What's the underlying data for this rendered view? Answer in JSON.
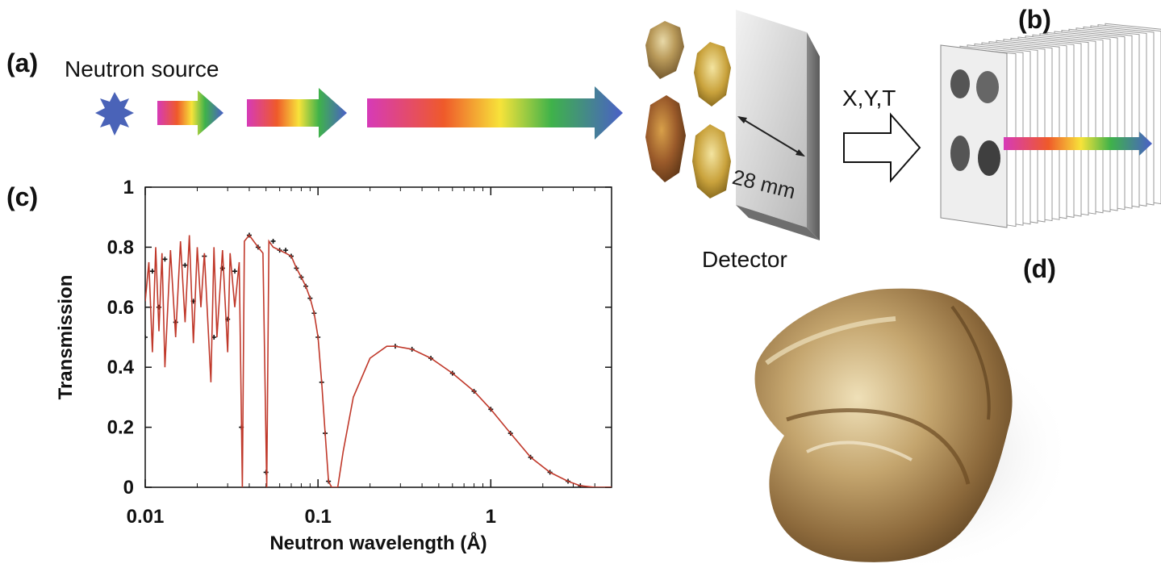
{
  "panels": {
    "a": "(a)",
    "b": "(b)",
    "c": "(c)",
    "d": "(d)"
  },
  "source_label": "Neutron source",
  "detector_label": "Detector",
  "detector_size": "28 mm",
  "output_label": "X,Y,T",
  "colors": {
    "spectrum": [
      "#d63ab8",
      "#ef5a2a",
      "#f7e33a",
      "#3fb24a",
      "#4a5fc8"
    ],
    "star": "#4a63b8",
    "fit_line": "#c0392b",
    "data_points": "#111111",
    "gold": "#b99a5a"
  },
  "chart_data": {
    "type": "scatter",
    "xlabel": "Neutron wavelength (Å)",
    "ylabel": "Transmission",
    "xscale": "log",
    "xlim": [
      0.01,
      5
    ],
    "ylim": [
      0,
      1
    ],
    "xticks": [
      "0.01",
      "0.1",
      "1"
    ],
    "yticks": [
      "0",
      "0.2",
      "0.4",
      "0.6",
      "0.8",
      "1"
    ],
    "grid": false,
    "series": [
      {
        "style": "points",
        "x": [
          0.01,
          0.011,
          0.012,
          0.013,
          0.015,
          0.017,
          0.019,
          0.022,
          0.025,
          0.028,
          0.03,
          0.033,
          0.036,
          0.04,
          0.045,
          0.05,
          0.055,
          0.06,
          0.065,
          0.07,
          0.075,
          0.08,
          0.085,
          0.09,
          0.095,
          0.1,
          0.105,
          0.11,
          0.115,
          0.28,
          0.35,
          0.45,
          0.6,
          0.8,
          1.0,
          1.3,
          1.7,
          2.2,
          2.8,
          3.3
        ],
        "y": [
          0.5,
          0.72,
          0.6,
          0.76,
          0.55,
          0.74,
          0.62,
          0.77,
          0.5,
          0.73,
          0.56,
          0.72,
          0.2,
          0.84,
          0.8,
          0.05,
          0.82,
          0.79,
          0.79,
          0.77,
          0.73,
          0.7,
          0.67,
          0.63,
          0.58,
          0.5,
          0.35,
          0.18,
          0.02,
          0.47,
          0.46,
          0.43,
          0.38,
          0.32,
          0.26,
          0.18,
          0.1,
          0.05,
          0.02,
          0.005
        ]
      },
      {
        "style": "line",
        "x": [
          0.01,
          0.0105,
          0.011,
          0.0115,
          0.012,
          0.0125,
          0.013,
          0.014,
          0.015,
          0.016,
          0.017,
          0.018,
          0.019,
          0.02,
          0.021,
          0.022,
          0.024,
          0.025,
          0.026,
          0.028,
          0.03,
          0.031,
          0.033,
          0.035,
          0.0365,
          0.0375,
          0.04,
          0.045,
          0.048,
          0.0505,
          0.052,
          0.055,
          0.06,
          0.065,
          0.07,
          0.075,
          0.08,
          0.085,
          0.09,
          0.095,
          0.1,
          0.105,
          0.11,
          0.115,
          0.12,
          0.125,
          0.13,
          0.14,
          0.16,
          0.2,
          0.25,
          0.28,
          0.35,
          0.45,
          0.6,
          0.8,
          1.0,
          1.3,
          1.7,
          2.2,
          2.8,
          3.3,
          4.0,
          5.0
        ],
        "y": [
          0.62,
          0.75,
          0.45,
          0.8,
          0.52,
          0.78,
          0.4,
          0.79,
          0.5,
          0.82,
          0.55,
          0.84,
          0.48,
          0.8,
          0.6,
          0.78,
          0.35,
          0.8,
          0.5,
          0.79,
          0.45,
          0.78,
          0.6,
          0.75,
          0.0,
          0.82,
          0.84,
          0.8,
          0.78,
          0.0,
          0.82,
          0.8,
          0.79,
          0.78,
          0.77,
          0.73,
          0.7,
          0.67,
          0.63,
          0.58,
          0.5,
          0.35,
          0.18,
          0.02,
          0.0,
          0.0,
          0.0,
          0.12,
          0.3,
          0.43,
          0.47,
          0.47,
          0.46,
          0.43,
          0.38,
          0.32,
          0.26,
          0.18,
          0.1,
          0.05,
          0.02,
          0.005,
          0.0,
          0.0
        ]
      }
    ]
  }
}
